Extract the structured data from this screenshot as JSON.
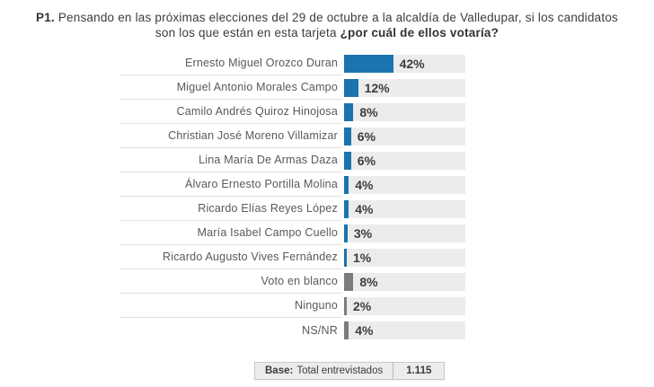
{
  "title": {
    "prefix": "P1.",
    "text": "Pensando en las próximas elecciones del 29 de octubre  a la alcaldía de Valledupar, si los candidatos son los que  están en esta tarjeta",
    "question": "¿por cuál de ellos votaría?"
  },
  "chart_data": {
    "type": "bar",
    "orientation": "horizontal",
    "unit": "%",
    "xlim": [
      0,
      100
    ],
    "grid": false,
    "legend": false,
    "categories": [
      "Ernesto Miguel Orozco Duran",
      "Miguel Antonio Morales Campo",
      "Camilo Andrés Quiroz Hinojosa",
      "Christian José Moreno Villamizar",
      "Lina María De Armas Daza",
      "Álvaro Ernesto Portilla Molina",
      "Ricardo Elías Reyes López",
      "María Isabel Campo Cuello",
      "Ricardo Augusto Vives Fernández",
      "Voto en blanco",
      "Ninguno",
      "NS/NR"
    ],
    "values": [
      42,
      12,
      8,
      6,
      6,
      4,
      4,
      3,
      1,
      8,
      2,
      4
    ],
    "value_labels": [
      "42%",
      "12%",
      "8%",
      "6%",
      "6%",
      "4%",
      "4%",
      "3%",
      "1%",
      "8%",
      "2%",
      "4%"
    ],
    "bar_colors": [
      "#1b74ae",
      "#1b74ae",
      "#1b74ae",
      "#1b74ae",
      "#1b74ae",
      "#1b74ae",
      "#1b74ae",
      "#1b74ae",
      "#1b74ae",
      "#7c7c7c",
      "#7c7c7c",
      "#7c7c7c"
    ],
    "track_color": "#ececec"
  },
  "footer": {
    "base_label": "Base:",
    "base_text": "Total entrevistados",
    "base_value": "1.115"
  }
}
